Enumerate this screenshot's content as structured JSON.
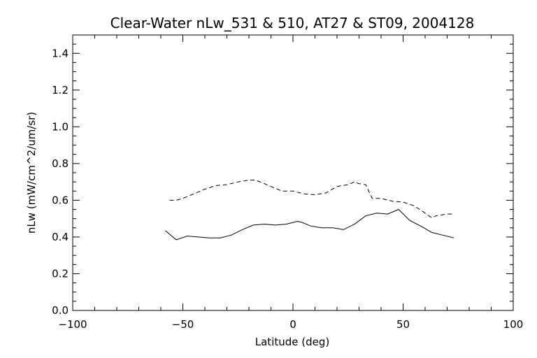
{
  "chart_data": {
    "type": "line",
    "title": "Clear-Water nLw_531 & 510, AT27 & ST09, 2004128",
    "xlabel": "Latitude (deg)",
    "ylabel": "nLw (mW/cm^2/um/sr)",
    "xlim": [
      -100,
      100
    ],
    "ylim": [
      0,
      1.5
    ],
    "x_ticks": [
      -100,
      -50,
      0,
      50,
      100
    ],
    "x_tick_labels": [
      "−100",
      "−50",
      "0",
      "50",
      "100"
    ],
    "y_ticks": [
      0.0,
      0.2,
      0.4,
      0.6,
      0.8,
      1.0,
      1.2,
      1.4
    ],
    "y_tick_labels": [
      "0.0",
      "0.2",
      "0.4",
      "0.6",
      "0.8",
      "1.0",
      "1.2",
      "1.4"
    ],
    "grid": false,
    "series": [
      {
        "style": "dashed",
        "color": "#000000",
        "x": [
          -56,
          -53,
          -50,
          -45,
          -40,
          -35,
          -30,
          -25,
          -20,
          -17,
          -15,
          -10,
          -5,
          0,
          5,
          10,
          15,
          20,
          25,
          28,
          30,
          33,
          36,
          40,
          45,
          50,
          55,
          60,
          63,
          65,
          70,
          73
        ],
        "y": [
          0.6,
          0.6,
          0.61,
          0.635,
          0.66,
          0.68,
          0.685,
          0.7,
          0.71,
          0.71,
          0.7,
          0.675,
          0.65,
          0.65,
          0.635,
          0.63,
          0.64,
          0.675,
          0.685,
          0.7,
          0.69,
          0.685,
          0.61,
          0.61,
          0.595,
          0.59,
          0.57,
          0.53,
          0.505,
          0.515,
          0.525,
          0.525
        ]
      },
      {
        "style": "solid",
        "color": "#000000",
        "x": [
          -58,
          -53,
          -48,
          -43,
          -38,
          -33,
          -28,
          -23,
          -18,
          -13,
          -8,
          -3,
          2,
          4,
          8,
          13,
          18,
          23,
          28,
          33,
          38,
          43,
          48,
          53,
          58,
          63,
          68,
          73
        ],
        "y": [
          0.435,
          0.385,
          0.405,
          0.4,
          0.395,
          0.395,
          0.41,
          0.44,
          0.465,
          0.47,
          0.465,
          0.47,
          0.485,
          0.48,
          0.46,
          0.45,
          0.45,
          0.44,
          0.47,
          0.515,
          0.53,
          0.525,
          0.55,
          0.49,
          0.46,
          0.425,
          0.41,
          0.395
        ]
      }
    ]
  }
}
